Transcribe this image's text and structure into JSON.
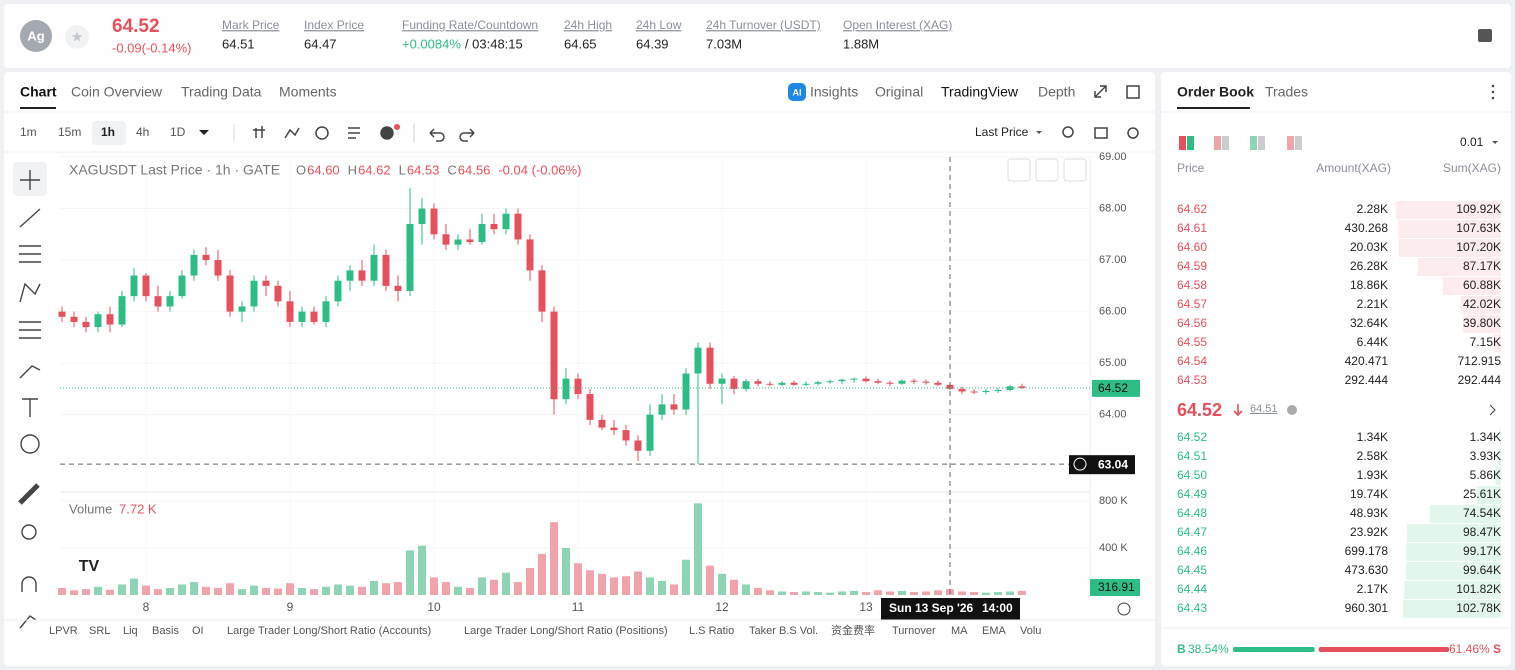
{
  "header": {
    "symbol_icon": "Ag",
    "price": "64.52",
    "change": "-0.09(-0.14%)",
    "stats": [
      {
        "label": "Mark Price",
        "value": "64.51"
      },
      {
        "label": "Index Price",
        "value": "64.47"
      },
      {
        "label": "Funding Rate/Countdown",
        "value": "+0.0084%",
        "extra": "/ 03:48:15"
      },
      {
        "label": "24h High",
        "value": "64.65"
      },
      {
        "label": "24h Low",
        "value": "64.39"
      },
      {
        "label": "24h Turnover (USDT)",
        "value": "7.03M"
      },
      {
        "label": "Open Interest (XAG)",
        "value": "1.88M"
      }
    ]
  },
  "tabs": [
    "Chart",
    "Coin Overview",
    "Trading Data",
    "Moments"
  ],
  "ai_badge": "AI",
  "views": [
    "Insights",
    "Original",
    "TradingView",
    "Depth"
  ],
  "intervals": [
    "1m",
    "15m",
    "1h",
    "4h",
    "1D"
  ],
  "price_type": "Last Price",
  "chart": {
    "legend": {
      "title": "XAGUSDT Last Price · 1h · GATE",
      "items": [
        {
          "k": "O",
          "v": "64.60"
        },
        {
          "k": "H",
          "v": "64.62"
        },
        {
          "k": "L",
          "v": "64.53"
        },
        {
          "k": "C",
          "v": "64.56"
        }
      ],
      "change": "-0.04 (-0.06%)"
    },
    "candles": [
      [
        66.0,
        66.1,
        65.8,
        65.9
      ],
      [
        65.9,
        66.0,
        65.7,
        65.8
      ],
      [
        65.8,
        65.9,
        65.6,
        65.7
      ],
      [
        65.7,
        66.0,
        65.6,
        65.95
      ],
      [
        65.95,
        66.1,
        65.6,
        65.75
      ],
      [
        65.75,
        66.4,
        65.7,
        66.3
      ],
      [
        66.3,
        66.85,
        66.2,
        66.7
      ],
      [
        66.7,
        66.75,
        66.2,
        66.3
      ],
      [
        66.3,
        66.5,
        66.0,
        66.1
      ],
      [
        66.1,
        66.4,
        66.0,
        66.3
      ],
      [
        66.3,
        66.8,
        66.25,
        66.7
      ],
      [
        66.7,
        67.2,
        66.6,
        67.1
      ],
      [
        67.1,
        67.25,
        66.9,
        67.0
      ],
      [
        67.0,
        67.2,
        66.6,
        66.7
      ],
      [
        66.7,
        66.8,
        65.9,
        66.0
      ],
      [
        66.0,
        66.2,
        65.8,
        66.1
      ],
      [
        66.1,
        66.7,
        66.0,
        66.6
      ],
      [
        66.6,
        66.7,
        66.3,
        66.5
      ],
      [
        66.5,
        66.6,
        66.1,
        66.2
      ],
      [
        66.2,
        66.4,
        65.7,
        65.8
      ],
      [
        65.8,
        66.1,
        65.7,
        66.0
      ],
      [
        66.0,
        66.1,
        65.75,
        65.8
      ],
      [
        65.8,
        66.3,
        65.7,
        66.2
      ],
      [
        66.2,
        66.7,
        66.1,
        66.6
      ],
      [
        66.6,
        66.9,
        66.4,
        66.8
      ],
      [
        66.8,
        67.0,
        66.5,
        66.6
      ],
      [
        66.6,
        67.3,
        66.5,
        67.1
      ],
      [
        67.1,
        67.2,
        66.4,
        66.5
      ],
      [
        66.5,
        66.7,
        66.2,
        66.4
      ],
      [
        66.4,
        68.4,
        66.3,
        67.7
      ],
      [
        67.7,
        68.2,
        67.3,
        68.0
      ],
      [
        68.0,
        68.1,
        67.4,
        67.5
      ],
      [
        67.5,
        67.7,
        67.2,
        67.3
      ],
      [
        67.3,
        67.5,
        67.2,
        67.4
      ],
      [
        67.4,
        67.6,
        67.3,
        67.35
      ],
      [
        67.35,
        67.9,
        67.3,
        67.7
      ],
      [
        67.7,
        67.9,
        67.5,
        67.6
      ],
      [
        67.6,
        68.0,
        67.5,
        67.9
      ],
      [
        67.9,
        68.0,
        67.3,
        67.4
      ],
      [
        67.4,
        67.5,
        66.6,
        66.8
      ],
      [
        66.8,
        66.9,
        65.8,
        66.0
      ],
      [
        66.0,
        66.1,
        64.0,
        64.3
      ],
      [
        64.3,
        64.9,
        64.2,
        64.7
      ],
      [
        64.7,
        64.8,
        64.3,
        64.4
      ],
      [
        64.4,
        64.5,
        63.8,
        63.9
      ],
      [
        63.9,
        64.0,
        63.7,
        63.75
      ],
      [
        63.75,
        63.9,
        63.6,
        63.7
      ],
      [
        63.7,
        63.8,
        63.4,
        63.5
      ],
      [
        63.5,
        63.6,
        63.1,
        63.3
      ],
      [
        63.3,
        64.2,
        63.2,
        64.0
      ],
      [
        64.0,
        64.4,
        63.9,
        64.2
      ],
      [
        64.2,
        64.4,
        64.0,
        64.1
      ],
      [
        64.1,
        64.9,
        64.0,
        64.8
      ],
      [
        64.8,
        65.4,
        63.04,
        65.3
      ],
      [
        65.3,
        65.4,
        64.5,
        64.6
      ],
      [
        64.6,
        64.8,
        64.2,
        64.7
      ],
      [
        64.7,
        64.75,
        64.4,
        64.5
      ],
      [
        64.5,
        64.7,
        64.45,
        64.65
      ],
      [
        64.65,
        64.7,
        64.55,
        64.6
      ],
      [
        64.6,
        64.65,
        64.55,
        64.58
      ],
      [
        64.58,
        64.65,
        64.55,
        64.62
      ],
      [
        64.62,
        64.66,
        64.56,
        64.58
      ],
      [
        64.58,
        64.65,
        64.55,
        64.6
      ],
      [
        64.6,
        64.66,
        64.57,
        64.63
      ],
      [
        64.63,
        64.68,
        64.6,
        64.65
      ],
      [
        64.65,
        64.7,
        64.6,
        64.68
      ],
      [
        64.68,
        64.72,
        64.62,
        64.7
      ],
      [
        64.7,
        64.74,
        64.62,
        64.65
      ],
      [
        64.65,
        64.7,
        64.6,
        64.62
      ],
      [
        64.62,
        64.66,
        64.55,
        64.6
      ],
      [
        64.6,
        64.68,
        64.58,
        64.66
      ],
      [
        64.66,
        64.7,
        64.6,
        64.64
      ],
      [
        64.64,
        64.68,
        64.58,
        64.62
      ],
      [
        64.62,
        64.66,
        64.55,
        64.58
      ],
      [
        64.58,
        64.6,
        64.48,
        64.5
      ],
      [
        64.5,
        64.55,
        64.4,
        64.45
      ],
      [
        64.45,
        64.5,
        64.4,
        64.44
      ],
      [
        64.44,
        64.5,
        64.4,
        64.46
      ],
      [
        64.46,
        64.52,
        64.42,
        64.48
      ],
      [
        64.48,
        64.58,
        64.45,
        64.55
      ],
      [
        64.55,
        64.6,
        64.5,
        64.52
      ]
    ],
    "ylim": [
      62.5,
      69
    ],
    "yticks": [
      {
        "value": 69,
        "label": "69.00"
      },
      {
        "value": 68,
        "label": "68.00"
      },
      {
        "value": 67,
        "label": "67.00"
      },
      {
        "value": 66,
        "label": "66.00"
      },
      {
        "value": 65,
        "label": "65.00"
      },
      {
        "value": 64,
        "label": "64.00"
      }
    ],
    "last_price": {
      "value": 64.52,
      "label": "64.52"
    },
    "crosshair": {
      "value": 63.04,
      "label": "63.04",
      "index": 74,
      "date": "Sun 13 Sep '26",
      "time": "14:00"
    },
    "xticks": [
      {
        "value": 7,
        "label": "8"
      },
      {
        "value": 19,
        "label": "9"
      },
      {
        "value": 31,
        "label": "10"
      },
      {
        "value": 43,
        "label": "11"
      },
      {
        "value": 55,
        "label": "12"
      },
      {
        "value": 67,
        "label": "13"
      }
    ],
    "volume": {
      "title": "Volume",
      "last": "7.72 K",
      "current": "316.91",
      "ylim": [
        0,
        868
      ],
      "yticks": [
        {
          "value": 800,
          "label": "800 K"
        },
        {
          "value": 400,
          "label": "400 K"
        }
      ],
      "values": [
        60,
        40,
        50,
        70,
        45,
        90,
        140,
        80,
        50,
        60,
        90,
        110,
        70,
        60,
        100,
        50,
        80,
        60,
        55,
        100,
        60,
        50,
        70,
        90,
        80,
        70,
        120,
        100,
        110,
        380,
        420,
        150,
        110,
        70,
        60,
        150,
        130,
        190,
        110,
        230,
        350,
        620,
        400,
        270,
        210,
        180,
        150,
        160,
        200,
        150,
        120,
        90,
        300,
        780,
        250,
        180,
        130,
        90,
        60,
        40,
        30,
        25,
        30,
        25,
        20,
        30,
        35,
        25,
        40,
        30,
        35,
        25,
        30,
        40,
        50,
        30,
        25,
        20,
        25,
        30,
        35
      ]
    }
  },
  "indicators": [
    "LPVR",
    "SRL",
    "Liq",
    "Basis",
    "OI",
    "Large Trader Long/Short Ratio (Accounts)",
    "Large Trader Long/Short Ratio (Positions)",
    "L.S Ratio",
    "Taker B.S Vol.",
    "资金费率",
    "Turnover",
    "MA",
    "EMA",
    "Volu"
  ],
  "order_book": {
    "tabs": [
      "Order Book",
      "Trades"
    ],
    "precision": "0.01",
    "columns": [
      "Price",
      "Amount(XAG)",
      "Sum(XAG)"
    ],
    "asks": [
      {
        "price": "64.62",
        "amount": "2.28K",
        "sum": {
          "value": 109920,
          "label": "109.92K"
        }
      },
      {
        "price": "64.61",
        "amount": "430.268",
        "sum": {
          "value": 107630,
          "label": "107.63K"
        }
      },
      {
        "price": "64.60",
        "amount": "20.03K",
        "sum": {
          "value": 107200,
          "label": "107.20K"
        }
      },
      {
        "price": "64.59",
        "amount": "26.28K",
        "sum": {
          "value": 87170,
          "label": "87.17K"
        }
      },
      {
        "price": "64.58",
        "amount": "18.86K",
        "sum": {
          "value": 60880,
          "label": "60.88K"
        }
      },
      {
        "price": "64.57",
        "amount": "2.21K",
        "sum": {
          "value": 42020,
          "label": "42.02K"
        }
      },
      {
        "price": "64.56",
        "amount": "32.64K",
        "sum": {
          "value": 39800,
          "label": "39.80K"
        }
      },
      {
        "price": "64.55",
        "amount": "6.44K",
        "sum": {
          "value": 7150,
          "label": "7.15K"
        }
      },
      {
        "price": "64.54",
        "amount": "420.471",
        "sum": 712.915
      },
      {
        "price": "64.53",
        "amount": "292.444",
        "sum": 292.444
      }
    ],
    "last": "64.52",
    "mark": "64.51",
    "bids": [
      {
        "price": "64.52",
        "amount": "1.34K",
        "sum": {
          "value": 1340,
          "label": "1.34K"
        }
      },
      {
        "price": "64.51",
        "amount": "2.58K",
        "sum": {
          "value": 3930,
          "label": "3.93K"
        }
      },
      {
        "price": "64.50",
        "amount": "1.93K",
        "sum": {
          "value": 5860,
          "label": "5.86K"
        }
      },
      {
        "price": "64.49",
        "amount": "19.74K",
        "sum": {
          "value": 25610,
          "label": "25.61K"
        }
      },
      {
        "price": "64.48",
        "amount": "48.93K",
        "sum": {
          "value": 74540,
          "label": "74.54K"
        }
      },
      {
        "price": "64.47",
        "amount": "23.92K",
        "sum": {
          "value": 98470,
          "label": "98.47K"
        }
      },
      {
        "price": "64.46",
        "amount": "699.178",
        "sum": {
          "value": 99170,
          "label": "99.17K"
        }
      },
      {
        "price": "64.45",
        "amount": "473.630",
        "sum": {
          "value": 99640,
          "label": "99.64K"
        }
      },
      {
        "price": "64.44",
        "amount": "2.17K",
        "sum": {
          "value": 101820,
          "label": "101.82K"
        }
      },
      {
        "price": "64.43",
        "amount": "960.301",
        "sum": {
          "value": 102780,
          "label": "102.78K"
        }
      }
    ],
    "ratio": {
      "b": "B",
      "s": "S",
      "buy": {
        "value": 38.54,
        "label": "38.54%"
      },
      "sell": {
        "value": 61.46,
        "label": "61.46%"
      }
    }
  }
}
